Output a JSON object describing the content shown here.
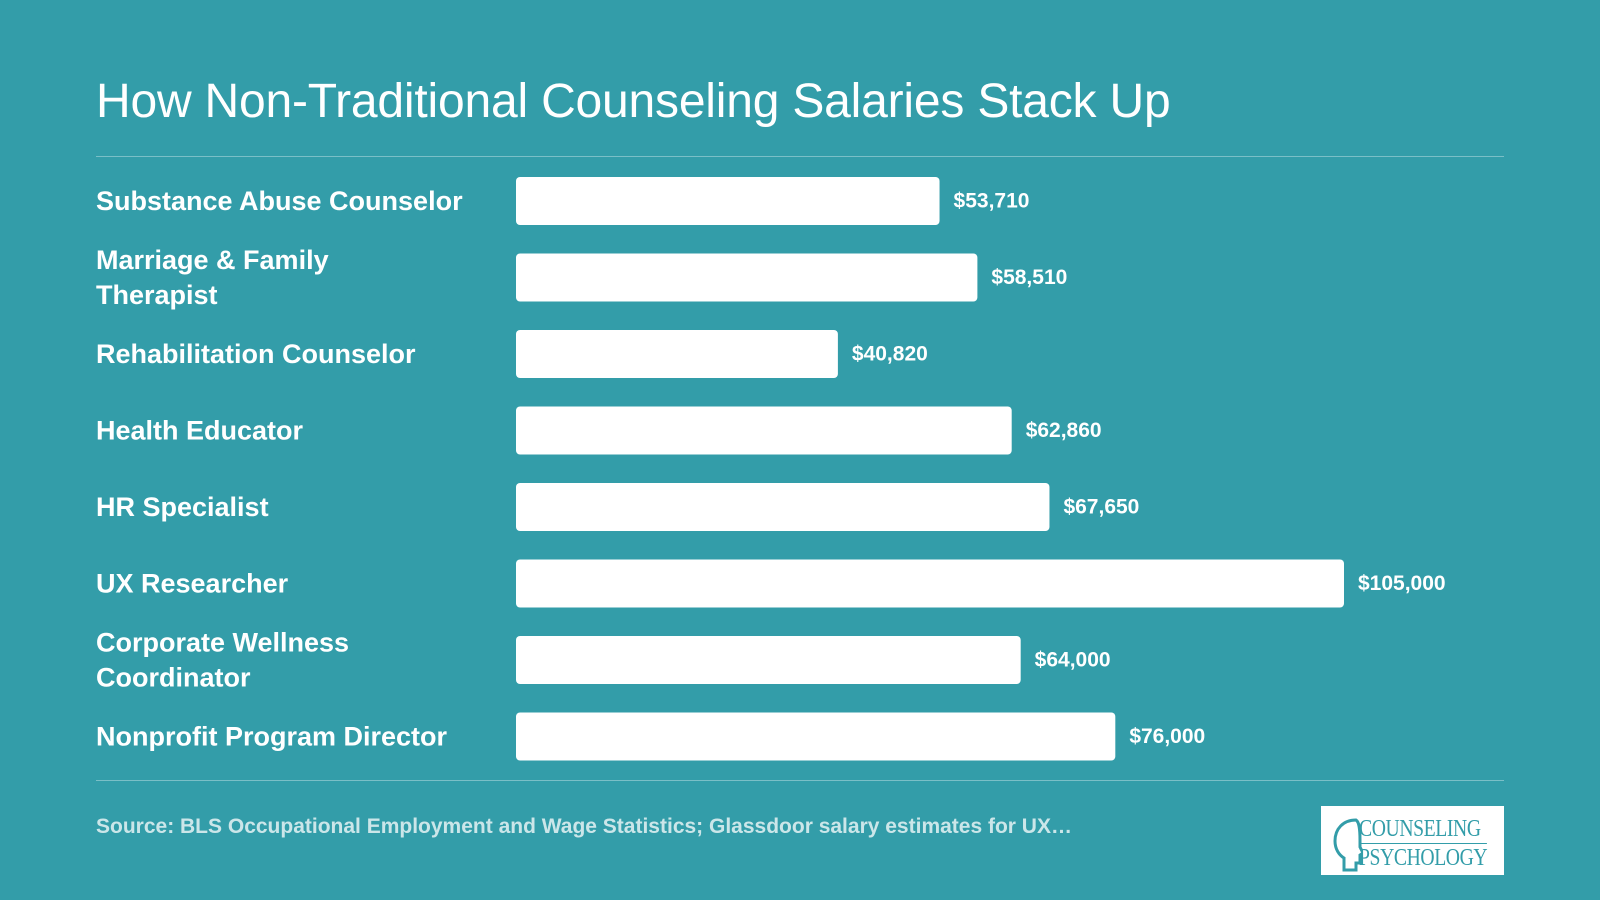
{
  "chart_data": {
    "type": "bar",
    "orientation": "horizontal",
    "title": "How Non-Traditional Counseling Salaries Stack Up",
    "categories": [
      [
        "Substance Abuse Counselor"
      ],
      [
        "Marriage & Family",
        "Therapist"
      ],
      [
        "Rehabilitation Counselor"
      ],
      [
        "Health Educator"
      ],
      [
        "HR Specialist"
      ],
      [
        "UX Researcher"
      ],
      [
        "Corporate Wellness",
        "Coordinator"
      ],
      [
        "Nonprofit Program Director"
      ]
    ],
    "values": [
      53710,
      58510,
      40820,
      62860,
      67650,
      105000,
      64000,
      76000
    ],
    "value_labels": [
      "$53,710",
      "$58,510",
      "$40,820",
      "$62,860",
      "$67,650",
      "$105,000",
      "$64,000",
      "$76,000"
    ],
    "xlim": [
      0,
      105000
    ],
    "grid": false,
    "legend": "none",
    "colors": {
      "background": "#339da9",
      "bar": "#ffffff",
      "text": "#ffffff"
    }
  },
  "source": "Source: BLS Occupational Employment and Wage Statistics; Glassdoor salary estimates for UX…",
  "logo": {
    "line1": "COUNSELING",
    "line2": "PSYCHOLOGY"
  }
}
